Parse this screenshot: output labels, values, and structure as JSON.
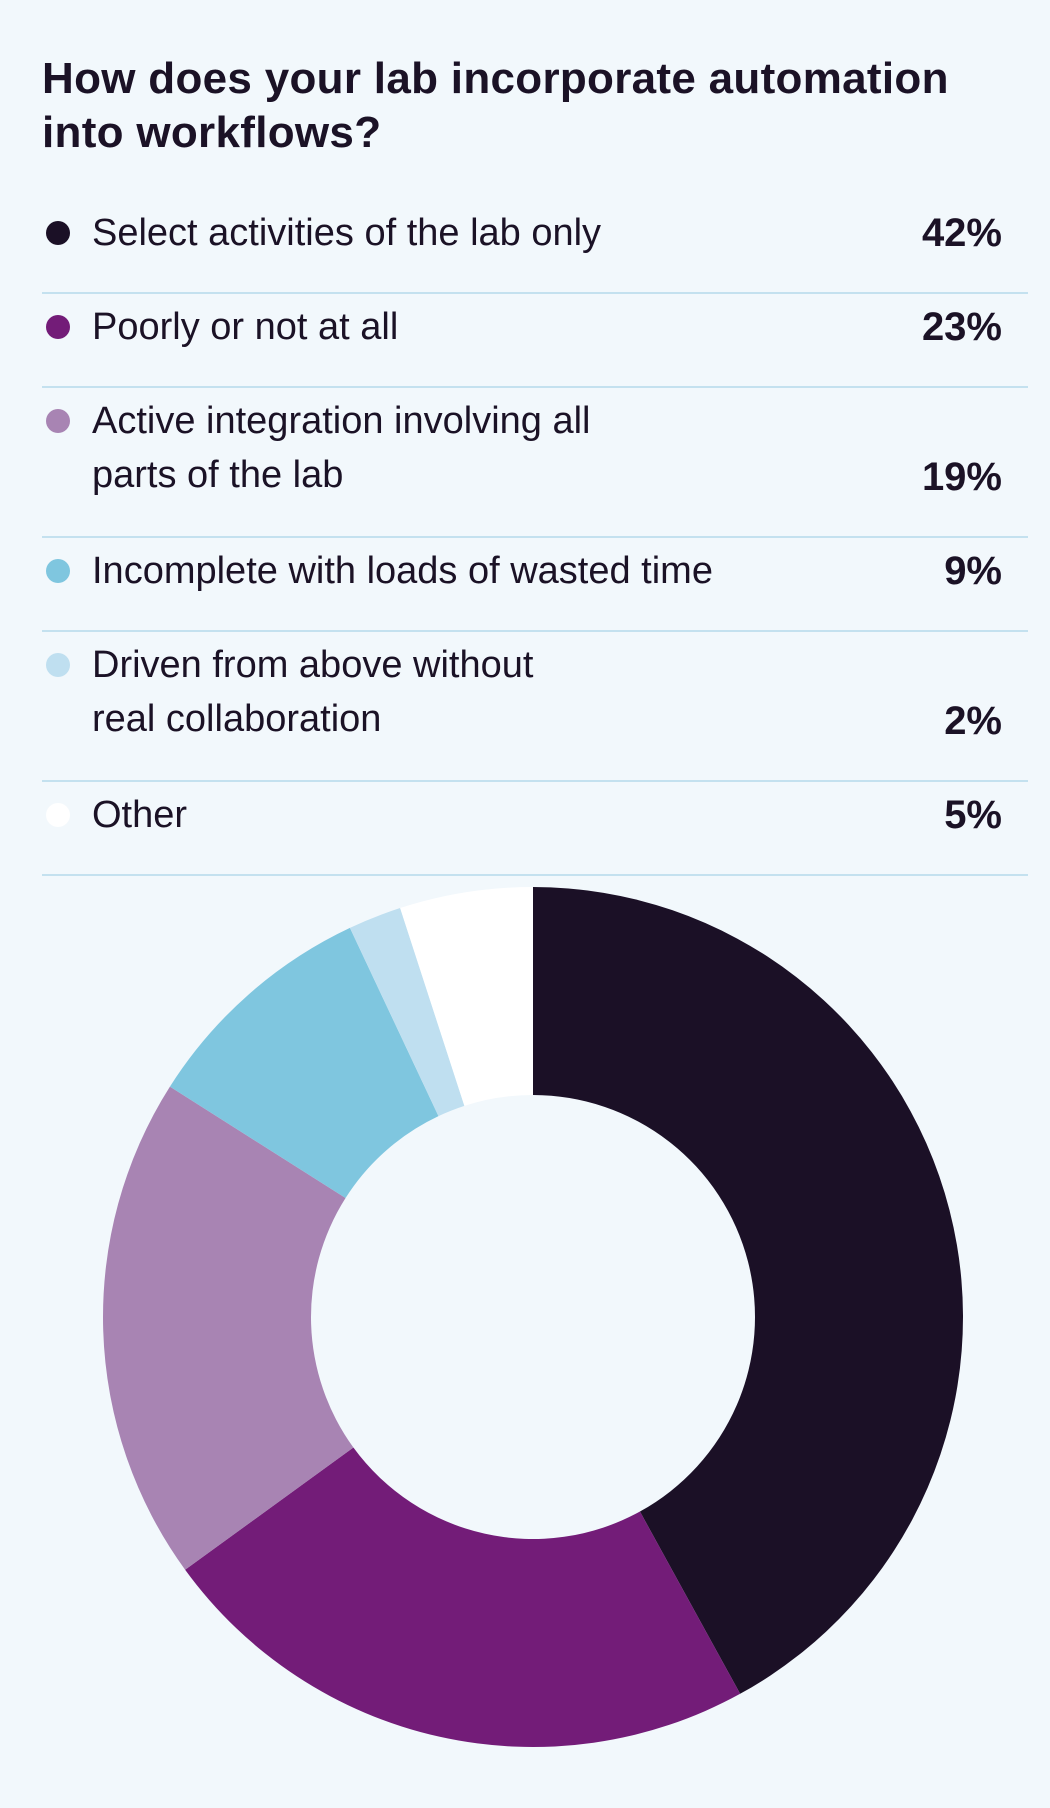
{
  "chart_data": {
    "type": "pie",
    "donut": true,
    "title": "How does your lab incorporate automation into workflows?",
    "categories": [
      "Select activities of the lab only",
      "Poorly or not at all",
      "Active integration involving all parts of the lab",
      "Incomplete with loads of wasted time",
      "Driven from above without real collaboration",
      "Other"
    ],
    "label_lines": [
      [
        "Select activities of the lab only"
      ],
      [
        "Poorly or not at all"
      ],
      [
        "Active integration involving all",
        "parts of the lab"
      ],
      [
        "Incomplete with loads of wasted time"
      ],
      [
        "Driven from above without",
        "real collaboration"
      ],
      [
        "Other"
      ]
    ],
    "values": [
      42,
      23,
      19,
      9,
      2,
      5
    ],
    "value_labels": [
      "42%",
      "23%",
      "19%",
      "9%",
      "2%",
      "5%"
    ],
    "colors": [
      "#1b1026",
      "#731c78",
      "#a884b3",
      "#7fc6df",
      "#bfdff0",
      "#ffffff"
    ],
    "legend_position": "top",
    "start_angle": "12 o'clock",
    "direction": "clockwise"
  }
}
